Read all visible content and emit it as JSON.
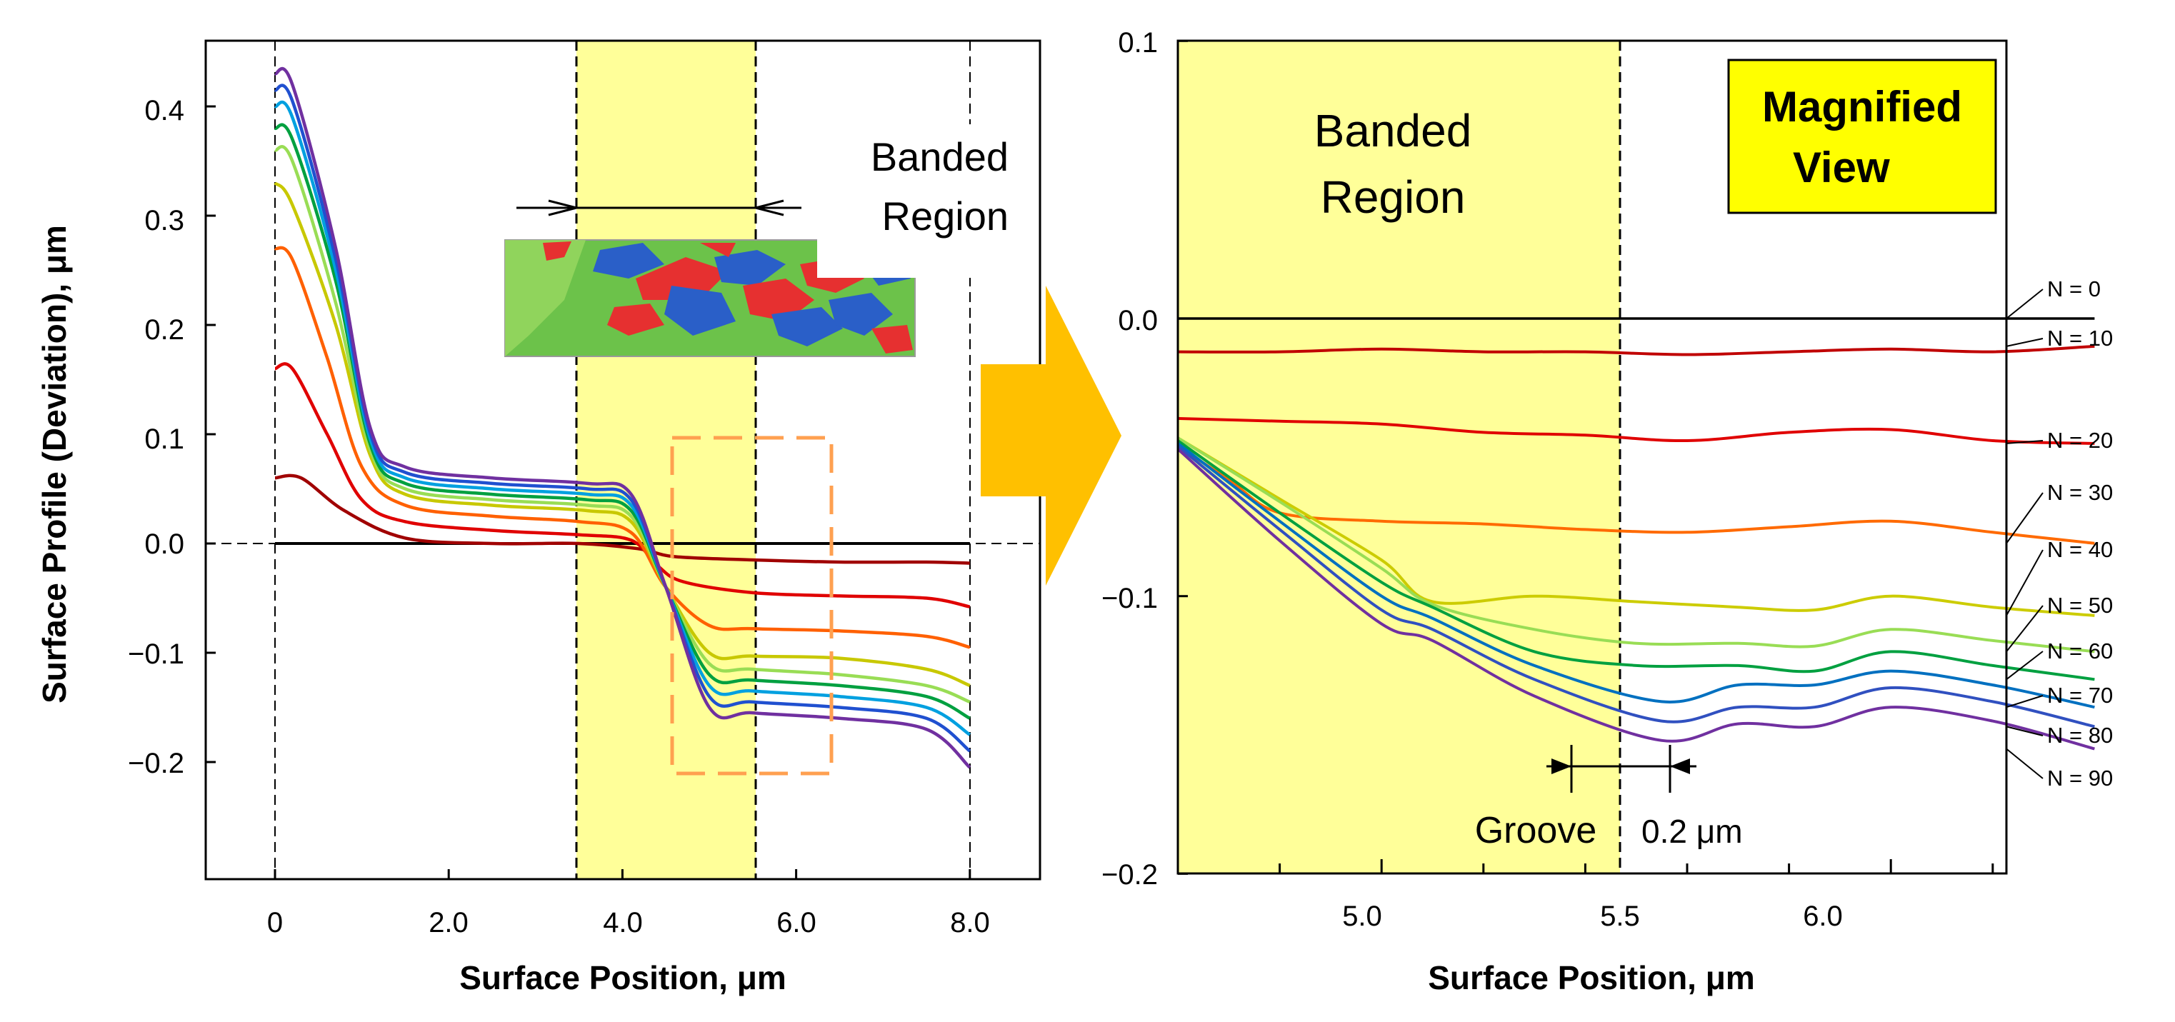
{
  "figure": {
    "left_panel": {
      "ylabel": "Surface Profile (Deviation), μm",
      "xlabel": "Surface Position, μm",
      "yticks": [
        "0.4",
        "0.3",
        "0.2",
        "0.1",
        "0.0",
        "−0.1",
        "−0.2"
      ],
      "xticks": [
        "0",
        "2.0",
        "4.0",
        "6.0",
        "8.0"
      ],
      "banded_label_line1": "Banded",
      "banded_label_line2": "Region"
    },
    "right_panel": {
      "xlabel": "Surface Position, μm",
      "yticks": [
        "0.1",
        "0.0",
        "−0.1",
        "−0.2"
      ],
      "xticks": [
        "5.0",
        "5.5",
        "6.0"
      ],
      "banded_label_line1": "Banded",
      "banded_label_line2": "Region",
      "magnified_line1": "Magnified",
      "magnified_line2": "View",
      "groove_label": "Groove",
      "scale_label": "0.2 μm",
      "curve_labels": [
        "N = 0",
        "N = 10",
        "N = 20",
        "N = 30",
        "N = 40",
        "N = 50",
        "N = 60",
        "N = 70",
        "N = 80",
        "N = 90"
      ]
    },
    "colors": {
      "band": "#ffff99",
      "magnified_box": "#ffff00",
      "arrow": "#ffc000",
      "dashed_box": "#ffa050"
    }
  },
  "chart_data": [
    {
      "type": "line",
      "xlabel": "Surface Position, μm",
      "ylabel": "Surface Profile (Deviation), μm",
      "xlim": [
        -0.7,
        8.7
      ],
      "ylim": [
        -0.3,
        0.45
      ],
      "banded_region": [
        3.55,
        5.55
      ],
      "series": [
        {
          "name": "N = 0",
          "color": "#000000",
          "x": [
            0,
            8
          ],
          "y": [
            0,
            0
          ]
        },
        {
          "name": "N = 10",
          "color": "#a00000",
          "x": [
            0,
            0.3,
            0.8,
            1.5,
            2.5,
            3.5,
            4.2,
            4.6,
            5.5,
            6.5,
            7.5,
            8.0
          ],
          "y": [
            0.06,
            0.06,
            0.03,
            0.005,
            0.0,
            0.0,
            -0.005,
            -0.012,
            -0.015,
            -0.017,
            -0.017,
            -0.018
          ]
        },
        {
          "name": "N = 20",
          "color": "#e00000",
          "x": [
            0,
            0.2,
            0.6,
            1.0,
            1.5,
            2.5,
            3.5,
            4.1,
            4.4,
            4.7,
            5.5,
            6.5,
            7.5,
            8.0
          ],
          "y": [
            0.16,
            0.16,
            0.1,
            0.04,
            0.02,
            0.012,
            0.008,
            0.003,
            -0.02,
            -0.035,
            -0.045,
            -0.048,
            -0.05,
            -0.058
          ]
        },
        {
          "name": "N = 30",
          "color": "#ff6000",
          "x": [
            0,
            0.2,
            0.6,
            1.0,
            1.5,
            2.5,
            3.5,
            4.1,
            4.5,
            5.0,
            5.5,
            6.5,
            7.5,
            8.0
          ],
          "y": [
            0.27,
            0.26,
            0.17,
            0.07,
            0.035,
            0.025,
            0.02,
            0.01,
            -0.04,
            -0.075,
            -0.078,
            -0.08,
            -0.085,
            -0.095
          ]
        },
        {
          "name": "N = 40",
          "color": "#c8c800",
          "x": [
            0,
            0.2,
            0.7,
            1.1,
            1.5,
            2.5,
            3.6,
            4.1,
            4.5,
            5.0,
            5.5,
            6.5,
            7.5,
            8.0
          ],
          "y": [
            0.33,
            0.31,
            0.2,
            0.08,
            0.045,
            0.035,
            0.03,
            0.02,
            -0.04,
            -0.1,
            -0.103,
            -0.105,
            -0.115,
            -0.13
          ]
        },
        {
          "name": "N = 50",
          "color": "#99dd55",
          "x": [
            0,
            0.2,
            0.7,
            1.1,
            1.5,
            2.5,
            3.6,
            4.1,
            4.5,
            5.0,
            5.5,
            6.5,
            7.5,
            8.0
          ],
          "y": [
            0.36,
            0.35,
            0.22,
            0.085,
            0.05,
            0.04,
            0.035,
            0.025,
            -0.04,
            -0.11,
            -0.115,
            -0.12,
            -0.13,
            -0.145
          ]
        },
        {
          "name": "N = 60",
          "color": "#00a040",
          "x": [
            0,
            0.2,
            0.7,
            1.1,
            1.5,
            2.5,
            3.6,
            4.1,
            4.5,
            5.0,
            5.5,
            6.5,
            7.5,
            8.0
          ],
          "y": [
            0.38,
            0.37,
            0.24,
            0.09,
            0.055,
            0.045,
            0.04,
            0.03,
            -0.04,
            -0.12,
            -0.125,
            -0.13,
            -0.14,
            -0.16
          ]
        },
        {
          "name": "N = 70",
          "color": "#00a0e0",
          "x": [
            0,
            0.2,
            0.7,
            1.1,
            1.5,
            2.5,
            3.6,
            4.1,
            4.5,
            5.0,
            5.5,
            6.5,
            7.5,
            8.0
          ],
          "y": [
            0.4,
            0.39,
            0.25,
            0.095,
            0.06,
            0.05,
            0.045,
            0.035,
            -0.04,
            -0.13,
            -0.135,
            -0.14,
            -0.15,
            -0.175
          ]
        },
        {
          "name": "N = 80",
          "color": "#2050d0",
          "x": [
            0,
            0.2,
            0.7,
            1.1,
            1.5,
            2.5,
            3.6,
            4.1,
            4.5,
            5.0,
            5.5,
            6.5,
            7.5,
            8.0
          ],
          "y": [
            0.415,
            0.405,
            0.26,
            0.1,
            0.065,
            0.055,
            0.05,
            0.04,
            -0.04,
            -0.14,
            -0.145,
            -0.15,
            -0.16,
            -0.19
          ]
        },
        {
          "name": "N = 90",
          "color": "#7030a0",
          "x": [
            0,
            0.2,
            0.7,
            1.1,
            1.5,
            2.5,
            3.6,
            4.1,
            4.5,
            5.0,
            5.5,
            6.5,
            7.5,
            8.0
          ],
          "y": [
            0.43,
            0.42,
            0.27,
            0.105,
            0.07,
            0.06,
            0.055,
            0.045,
            -0.04,
            -0.15,
            -0.155,
            -0.16,
            -0.17,
            -0.205
          ]
        }
      ]
    },
    {
      "type": "line",
      "xlabel": "Surface Position, μm",
      "xlim": [
        4.6,
        6.4
      ],
      "ylim": [
        -0.2,
        0.1
      ],
      "banded_region": [
        4.6,
        5.55
      ],
      "series": [
        {
          "name": "N = 0",
          "color": "#000000",
          "x": [
            4.6,
            6.4
          ],
          "y": [
            0.0,
            0.0
          ]
        },
        {
          "name": "N = 10",
          "color": "#c00000",
          "x": [
            4.6,
            4.8,
            5.0,
            5.2,
            5.4,
            5.6,
            5.8,
            6.0,
            6.2,
            6.4
          ],
          "y": [
            -0.012,
            -0.012,
            -0.011,
            -0.012,
            -0.012,
            -0.013,
            -0.012,
            -0.011,
            -0.012,
            -0.01
          ]
        },
        {
          "name": "N = 20",
          "color": "#e00000",
          "x": [
            4.6,
            4.8,
            5.0,
            5.2,
            5.4,
            5.6,
            5.8,
            6.0,
            6.2,
            6.4
          ],
          "y": [
            -0.036,
            -0.037,
            -0.038,
            -0.041,
            -0.042,
            -0.044,
            -0.041,
            -0.04,
            -0.044,
            -0.045
          ]
        },
        {
          "name": "N = 30",
          "color": "#ff6a00",
          "x": [
            4.6,
            4.7,
            4.8,
            5.0,
            5.2,
            5.4,
            5.6,
            5.8,
            6.0,
            6.2,
            6.4
          ],
          "y": [
            -0.046,
            -0.058,
            -0.07,
            -0.073,
            -0.074,
            -0.076,
            -0.077,
            -0.075,
            -0.073,
            -0.077,
            -0.081
          ]
        },
        {
          "name": "N = 40",
          "color": "#cccc00",
          "x": [
            4.6,
            4.8,
            5.0,
            5.1,
            5.3,
            5.5,
            5.7,
            5.85,
            6.0,
            6.2,
            6.4
          ],
          "y": [
            -0.043,
            -0.065,
            -0.087,
            -0.102,
            -0.1,
            -0.102,
            -0.104,
            -0.105,
            -0.1,
            -0.104,
            -0.107
          ]
        },
        {
          "name": "N = 50",
          "color": "#99dd55",
          "x": [
            4.6,
            4.8,
            5.0,
            5.1,
            5.3,
            5.5,
            5.7,
            5.85,
            6.0,
            6.2,
            6.4
          ],
          "y": [
            -0.043,
            -0.066,
            -0.09,
            -0.103,
            -0.112,
            -0.117,
            -0.117,
            -0.118,
            -0.112,
            -0.116,
            -0.12
          ]
        },
        {
          "name": "N = 60",
          "color": "#00a040",
          "x": [
            4.6,
            4.8,
            5.0,
            5.1,
            5.3,
            5.5,
            5.7,
            5.85,
            6.0,
            6.2,
            6.4
          ],
          "y": [
            -0.044,
            -0.07,
            -0.095,
            -0.104,
            -0.12,
            -0.125,
            -0.125,
            -0.127,
            -0.12,
            -0.125,
            -0.13
          ]
        },
        {
          "name": "N = 70",
          "color": "#0070c0",
          "x": [
            4.6,
            4.8,
            5.0,
            5.1,
            5.3,
            5.55,
            5.7,
            5.85,
            6.0,
            6.2,
            6.4
          ],
          "y": [
            -0.045,
            -0.073,
            -0.1,
            -0.108,
            -0.125,
            -0.138,
            -0.132,
            -0.132,
            -0.127,
            -0.132,
            -0.14
          ]
        },
        {
          "name": "N = 80",
          "color": "#3050c0",
          "x": [
            4.6,
            4.8,
            5.0,
            5.1,
            5.3,
            5.55,
            5.7,
            5.85,
            6.0,
            6.2,
            6.4
          ],
          "y": [
            -0.046,
            -0.076,
            -0.105,
            -0.112,
            -0.13,
            -0.145,
            -0.14,
            -0.14,
            -0.133,
            -0.138,
            -0.147
          ]
        },
        {
          "name": "N = 90",
          "color": "#7030a0",
          "x": [
            4.6,
            4.8,
            5.0,
            5.1,
            5.3,
            5.55,
            5.7,
            5.85,
            6.0,
            6.2,
            6.4
          ],
          "y": [
            -0.047,
            -0.08,
            -0.11,
            -0.116,
            -0.136,
            -0.152,
            -0.146,
            -0.147,
            -0.14,
            -0.145,
            -0.155
          ]
        }
      ]
    }
  ]
}
